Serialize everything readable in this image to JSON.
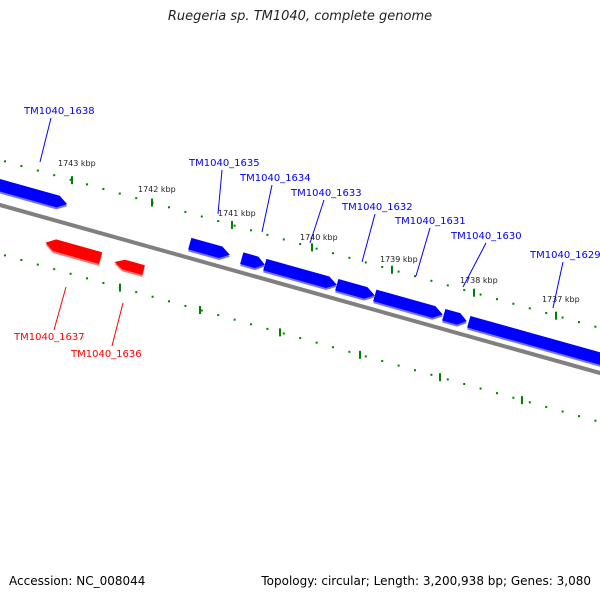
{
  "title": "Ruegeria sp. TM1040, complete genome",
  "footer": {
    "accession": "Accession: NC_008044",
    "stats": "Topology: circular; Length: 3,200,938 bp; Genes: 3,080"
  },
  "colors": {
    "forward_gene": "#0000ff",
    "reverse_gene": "#ff0000",
    "backbone": "#808080",
    "ticks": "#008000"
  },
  "ruler_labels": [
    {
      "text": "1743 kbp"
    },
    {
      "text": "1742 kbp"
    },
    {
      "text": "1741 kbp"
    },
    {
      "text": "1740 kbp"
    },
    {
      "text": "1739 kbp"
    },
    {
      "text": "1738 kbp"
    },
    {
      "text": "1737 kbp"
    }
  ],
  "genes": [
    {
      "name": "TM1040_1638",
      "strand": "forward"
    },
    {
      "name": "TM1040_1637",
      "strand": "reverse"
    },
    {
      "name": "TM1040_1636",
      "strand": "reverse"
    },
    {
      "name": "TM1040_1635",
      "strand": "forward"
    },
    {
      "name": "TM1040_1634",
      "strand": "forward"
    },
    {
      "name": "TM1040_1633",
      "strand": "forward"
    },
    {
      "name": "TM1040_1632",
      "strand": "forward"
    },
    {
      "name": "TM1040_1631",
      "strand": "forward"
    },
    {
      "name": "TM1040_1630",
      "strand": "forward"
    },
    {
      "name": "TM1040_1629",
      "strand": "forward"
    }
  ]
}
